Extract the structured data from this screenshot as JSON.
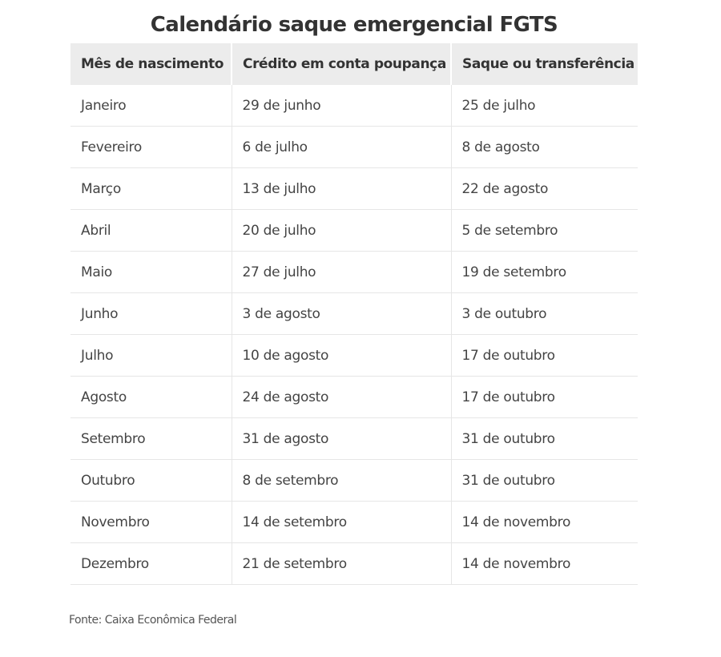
{
  "title": "Calendário saque emergencial FGTS",
  "table": {
    "headers": [
      "Mês de nascimento",
      "Crédito em conta poupança",
      "Saque ou transferência"
    ],
    "rows": [
      [
        "Janeiro",
        "29 de junho",
        "25 de julho"
      ],
      [
        "Fevereiro",
        "6 de julho",
        "8 de agosto"
      ],
      [
        "Março",
        "13 de julho",
        "22 de agosto"
      ],
      [
        "Abril",
        "20 de julho",
        "5 de setembro"
      ],
      [
        "Maio",
        "27 de julho",
        "19 de setembro"
      ],
      [
        "Junho",
        "3 de agosto",
        "3 de outubro"
      ],
      [
        "Julho",
        "10 de agosto",
        "17 de outubro"
      ],
      [
        "Agosto",
        "24 de agosto",
        "17 de outubro"
      ],
      [
        "Setembro",
        "31 de agosto",
        "31 de outubro"
      ],
      [
        "Outubro",
        "8 de setembro",
        "31 de outubro"
      ],
      [
        "Novembro",
        "14 de setembro",
        "14 de novembro"
      ],
      [
        "Dezembro",
        "21 de setembro",
        "14 de novembro"
      ]
    ]
  },
  "source": "Fonte: Caixa Econômica Federal"
}
